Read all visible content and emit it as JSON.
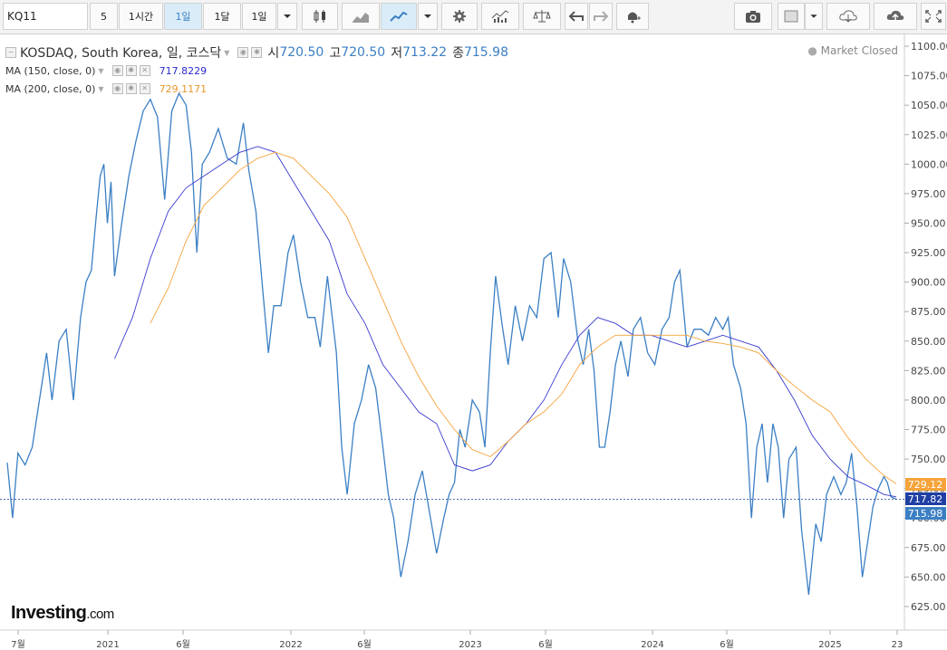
{
  "toolbar": {
    "symbol": "KQ11",
    "intervals": [
      "5",
      "1시간",
      "1일",
      "1달",
      "1일"
    ],
    "active_interval": "1일"
  },
  "legend": {
    "title": "KOSDAQ, South Korea, 일, 코스닥",
    "open_label": "시",
    "open": "720.50",
    "high_label": "고",
    "high": "720.50",
    "low_label": "저",
    "low": "713.22",
    "close_label": "종",
    "close": "715.98",
    "ma150_label": "MA (150, close, 0)",
    "ma150_value": "717.8229",
    "ma200_label": "MA (200, close, 0)",
    "ma200_value": "729.1171"
  },
  "market_status": "Market Closed",
  "logo": {
    "main": "Investing",
    "suffix": ".com"
  },
  "colors": {
    "price": "#3b7fc4",
    "ma150": "#3a3ad0",
    "ma200": "#f5a33a",
    "last_line": "#1f3f8f",
    "label_ma200": "#f5a33a",
    "label_ma150": "#1f3fa3",
    "label_price": "#3b7fc4"
  },
  "chart_data": {
    "type": "line",
    "x_ticks": [
      "7월",
      "2021",
      "6월",
      "2022",
      "6월",
      "2023",
      "6월",
      "2024",
      "6월",
      "2025",
      "23"
    ],
    "ylim": [
      605,
      1110
    ],
    "y_ticks": [
      "1100.00",
      "1075.00",
      "1050.00",
      "1025.00",
      "1000.00",
      "975.00",
      "950.00",
      "925.00",
      "900.00",
      "875.00",
      "850.00",
      "825.00",
      "800.00",
      "775.00",
      "750.00",
      "725.00",
      "700.00",
      "675.00",
      "650.00",
      "625.00"
    ],
    "y_tick_values": [
      1100,
      1075,
      1050,
      1025,
      1000,
      975,
      950,
      925,
      900,
      875,
      850,
      825,
      800,
      775,
      750,
      725,
      700,
      675,
      650,
      625
    ],
    "last_labels": [
      {
        "text": "729.12",
        "value": 729.12,
        "series": "ma200"
      },
      {
        "text": "717.82",
        "value": 717.82,
        "series": "ma150"
      },
      {
        "text": "715.98",
        "value": 715.98,
        "series": "price"
      }
    ],
    "series": [
      {
        "key": "price",
        "name": "KOSDAQ",
        "points": [
          [
            0,
            747
          ],
          [
            0.3,
            700
          ],
          [
            0.6,
            755
          ],
          [
            1.0,
            745
          ],
          [
            1.4,
            760
          ],
          [
            1.8,
            800
          ],
          [
            2.2,
            840
          ],
          [
            2.5,
            800
          ],
          [
            2.9,
            850
          ],
          [
            3.3,
            860
          ],
          [
            3.7,
            800
          ],
          [
            4.1,
            870
          ],
          [
            4.4,
            900
          ],
          [
            4.7,
            910
          ],
          [
            5.0,
            960
          ],
          [
            5.2,
            990
          ],
          [
            5.4,
            1000
          ],
          [
            5.6,
            950
          ],
          [
            5.8,
            985
          ],
          [
            6.0,
            905
          ],
          [
            6.4,
            950
          ],
          [
            6.8,
            990
          ],
          [
            7.2,
            1020
          ],
          [
            7.6,
            1045
          ],
          [
            8.0,
            1055
          ],
          [
            8.4,
            1040
          ],
          [
            8.8,
            970
          ],
          [
            9.2,
            1045
          ],
          [
            9.6,
            1060
          ],
          [
            10.0,
            1050
          ],
          [
            10.3,
            1010
          ],
          [
            10.6,
            925
          ],
          [
            10.9,
            1000
          ],
          [
            11.3,
            1010
          ],
          [
            11.8,
            1030
          ],
          [
            12.3,
            1005
          ],
          [
            12.8,
            1000
          ],
          [
            13.2,
            1035
          ],
          [
            13.5,
            995
          ],
          [
            13.9,
            960
          ],
          [
            14.3,
            890
          ],
          [
            14.6,
            840
          ],
          [
            14.9,
            880
          ],
          [
            15.3,
            880
          ],
          [
            15.7,
            925
          ],
          [
            16.0,
            940
          ],
          [
            16.4,
            900
          ],
          [
            16.8,
            870
          ],
          [
            17.2,
            870
          ],
          [
            17.5,
            845
          ],
          [
            17.9,
            905
          ],
          [
            18.4,
            840
          ],
          [
            18.7,
            760
          ],
          [
            19.0,
            720
          ],
          [
            19.4,
            780
          ],
          [
            19.8,
            800
          ],
          [
            20.2,
            830
          ],
          [
            20.6,
            810
          ],
          [
            21.0,
            760
          ],
          [
            21.3,
            720
          ],
          [
            21.6,
            700
          ],
          [
            22.0,
            650
          ],
          [
            22.4,
            680
          ],
          [
            22.8,
            720
          ],
          [
            23.2,
            740
          ],
          [
            23.6,
            705
          ],
          [
            24.0,
            670
          ],
          [
            24.4,
            700
          ],
          [
            24.7,
            720
          ],
          [
            25.0,
            730
          ],
          [
            25.3,
            775
          ],
          [
            25.6,
            760
          ],
          [
            26.0,
            800
          ],
          [
            26.4,
            790
          ],
          [
            26.7,
            760
          ],
          [
            27.0,
            840
          ],
          [
            27.3,
            905
          ],
          [
            27.7,
            860
          ],
          [
            28.0,
            830
          ],
          [
            28.4,
            880
          ],
          [
            28.8,
            850
          ],
          [
            29.2,
            880
          ],
          [
            29.6,
            870
          ],
          [
            30.0,
            920
          ],
          [
            30.4,
            925
          ],
          [
            30.8,
            870
          ],
          [
            31.1,
            920
          ],
          [
            31.5,
            900
          ],
          [
            31.9,
            850
          ],
          [
            32.2,
            830
          ],
          [
            32.5,
            860
          ],
          [
            32.8,
            825
          ],
          [
            33.1,
            760
          ],
          [
            33.4,
            760
          ],
          [
            33.7,
            790
          ],
          [
            34.0,
            830
          ],
          [
            34.3,
            850
          ],
          [
            34.7,
            820
          ],
          [
            35.0,
            860
          ],
          [
            35.4,
            870
          ],
          [
            35.8,
            840
          ],
          [
            36.2,
            830
          ],
          [
            36.6,
            860
          ],
          [
            37.0,
            870
          ],
          [
            37.3,
            900
          ],
          [
            37.6,
            910
          ],
          [
            38.0,
            845
          ],
          [
            38.4,
            860
          ],
          [
            38.8,
            860
          ],
          [
            39.2,
            855
          ],
          [
            39.6,
            870
          ],
          [
            40.0,
            860
          ],
          [
            40.3,
            870
          ],
          [
            40.6,
            830
          ],
          [
            41.0,
            810
          ],
          [
            41.3,
            780
          ],
          [
            41.6,
            700
          ],
          [
            41.9,
            760
          ],
          [
            42.2,
            780
          ],
          [
            42.5,
            730
          ],
          [
            42.8,
            780
          ],
          [
            43.1,
            760
          ],
          [
            43.4,
            700
          ],
          [
            43.7,
            750
          ],
          [
            44.1,
            760
          ],
          [
            44.4,
            690
          ],
          [
            44.8,
            635
          ],
          [
            45.2,
            695
          ],
          [
            45.5,
            680
          ],
          [
            45.8,
            720
          ],
          [
            46.2,
            735
          ],
          [
            46.6,
            720
          ],
          [
            46.9,
            730
          ],
          [
            47.2,
            755
          ],
          [
            47.5,
            710
          ],
          [
            47.8,
            650
          ],
          [
            48.1,
            680
          ],
          [
            48.4,
            710
          ],
          [
            48.7,
            725
          ],
          [
            49.0,
            735
          ],
          [
            49.2,
            730
          ],
          [
            49.4,
            718
          ],
          [
            49.7,
            716
          ]
        ]
      },
      {
        "key": "ma150",
        "name": "MA (150, close, 0)",
        "points": [
          [
            6.0,
            835
          ],
          [
            7.0,
            870
          ],
          [
            8.0,
            920
          ],
          [
            9.0,
            960
          ],
          [
            10.0,
            980
          ],
          [
            11.0,
            990
          ],
          [
            12.0,
            1000
          ],
          [
            13.0,
            1010
          ],
          [
            14.0,
            1015
          ],
          [
            15.0,
            1010
          ],
          [
            16.0,
            985
          ],
          [
            17.0,
            960
          ],
          [
            18.0,
            935
          ],
          [
            19.0,
            890
          ],
          [
            20.0,
            865
          ],
          [
            21.0,
            830
          ],
          [
            22.0,
            810
          ],
          [
            23.0,
            790
          ],
          [
            24.0,
            780
          ],
          [
            25.0,
            745
          ],
          [
            26.0,
            740
          ],
          [
            27.0,
            745
          ],
          [
            28.0,
            765
          ],
          [
            29.0,
            780
          ],
          [
            30.0,
            800
          ],
          [
            31.0,
            830
          ],
          [
            32.0,
            855
          ],
          [
            33.0,
            870
          ],
          [
            34.0,
            865
          ],
          [
            35.0,
            855
          ],
          [
            36.0,
            855
          ],
          [
            37.0,
            850
          ],
          [
            38.0,
            845
          ],
          [
            39.0,
            850
          ],
          [
            40.0,
            855
          ],
          [
            41.0,
            850
          ],
          [
            42.0,
            845
          ],
          [
            43.0,
            825
          ],
          [
            44.0,
            800
          ],
          [
            45.0,
            770
          ],
          [
            46.0,
            750
          ],
          [
            47.0,
            735
          ],
          [
            48.0,
            728
          ],
          [
            49.0,
            720
          ],
          [
            49.7,
            718
          ]
        ]
      },
      {
        "key": "ma200",
        "name": "MA (200, close, 0)",
        "points": [
          [
            8.0,
            865
          ],
          [
            9.0,
            895
          ],
          [
            10.0,
            935
          ],
          [
            11.0,
            965
          ],
          [
            12.0,
            980
          ],
          [
            13.0,
            995
          ],
          [
            14.0,
            1005
          ],
          [
            15.0,
            1010
          ],
          [
            16.0,
            1005
          ],
          [
            17.0,
            990
          ],
          [
            18.0,
            975
          ],
          [
            19.0,
            955
          ],
          [
            20.0,
            920
          ],
          [
            21.0,
            885
          ],
          [
            22.0,
            850
          ],
          [
            23.0,
            820
          ],
          [
            24.0,
            795
          ],
          [
            25.0,
            775
          ],
          [
            26.0,
            758
          ],
          [
            27.0,
            752
          ],
          [
            28.0,
            765
          ],
          [
            29.0,
            780
          ],
          [
            30.0,
            790
          ],
          [
            31.0,
            805
          ],
          [
            32.0,
            830
          ],
          [
            33.0,
            845
          ],
          [
            34.0,
            855
          ],
          [
            35.0,
            855
          ],
          [
            36.0,
            855
          ],
          [
            37.0,
            855
          ],
          [
            38.0,
            855
          ],
          [
            39.0,
            850
          ],
          [
            40.0,
            848
          ],
          [
            41.0,
            845
          ],
          [
            42.0,
            840
          ],
          [
            43.0,
            825
          ],
          [
            44.0,
            812
          ],
          [
            45.0,
            800
          ],
          [
            46.0,
            790
          ],
          [
            47.0,
            768
          ],
          [
            48.0,
            750
          ],
          [
            49.0,
            736
          ],
          [
            49.7,
            729
          ]
        ]
      }
    ]
  }
}
